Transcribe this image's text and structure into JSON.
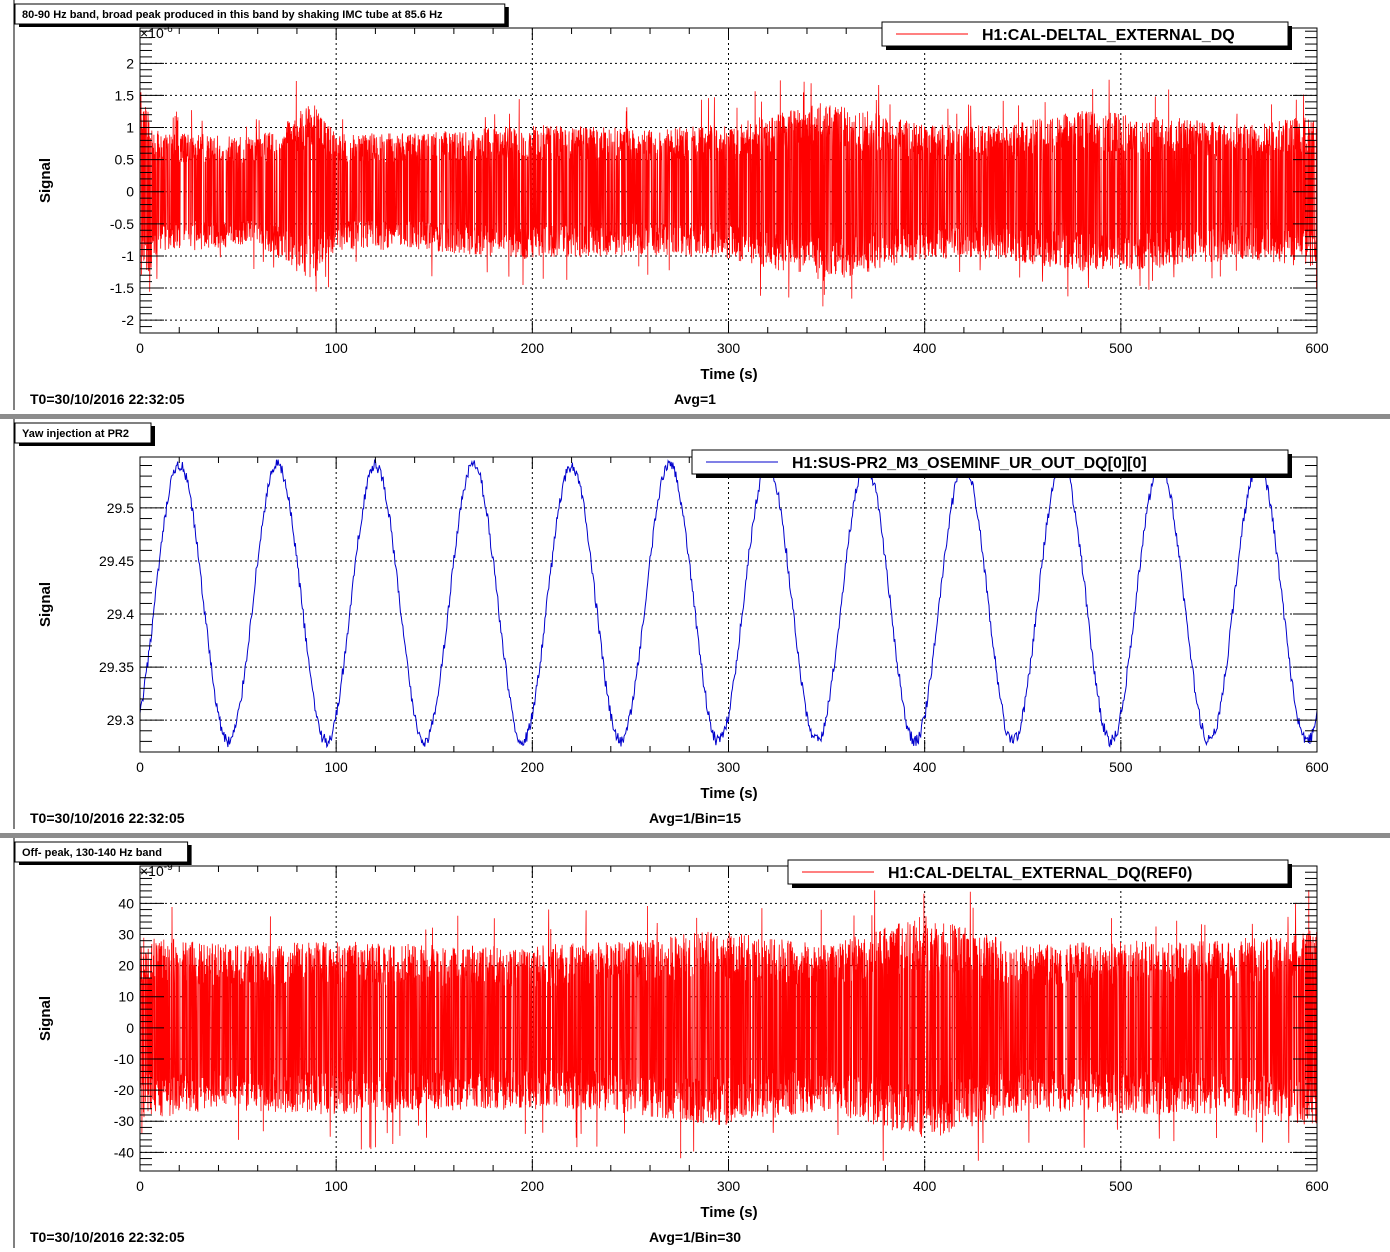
{
  "chart_data": [
    {
      "type": "line",
      "title": "80-90 Hz band, broad peak produced in this band by shaking IMC tube at 85.6 Hz",
      "xlabel": "Time (s)",
      "ylabel": "Signal",
      "y_multiplier": "×10",
      "y_exponent": "-6",
      "xlim": [
        0,
        600
      ],
      "ylim": [
        -2.2,
        2.55
      ],
      "x_ticks": [
        0,
        100,
        200,
        300,
        400,
        500,
        600
      ],
      "y_ticks": [
        -2,
        -1.5,
        -1,
        -0.5,
        0,
        0.5,
        1,
        1.5,
        2
      ],
      "grid": true,
      "legend_position": "top-right",
      "series": [
        {
          "name": "H1:CAL-DELTAL_EXTERNAL_DQ",
          "color": "#ff0000",
          "style": "dense-noise",
          "x_range": [
            0,
            600
          ],
          "envelope_max": [
            [
              0,
              2.3
            ],
            [
              10,
              1.3
            ],
            [
              30,
              1.3
            ],
            [
              60,
              1.2
            ],
            [
              88,
              2.0
            ],
            [
              100,
              1.3
            ],
            [
              140,
              1.3
            ],
            [
              200,
              1.5
            ],
            [
              260,
              1.4
            ],
            [
              300,
              1.5
            ],
            [
              350,
              2.0
            ],
            [
              400,
              1.5
            ],
            [
              440,
              1.5
            ],
            [
              480,
              1.8
            ],
            [
              520,
              1.7
            ],
            [
              560,
              1.5
            ],
            [
              600,
              1.7
            ]
          ]
        }
      ],
      "footer_left": "T0=30/10/2016 22:32:05",
      "footer_center": "Avg=1"
    },
    {
      "type": "line",
      "title": "Yaw injection at PR2",
      "xlabel": "Time (s)",
      "ylabel": "Signal",
      "xlim": [
        0,
        600
      ],
      "ylim": [
        29.27,
        29.548
      ],
      "x_ticks": [
        0,
        100,
        200,
        300,
        400,
        500,
        600
      ],
      "y_ticks": [
        29.3,
        29.35,
        29.4,
        29.45,
        29.5
      ],
      "grid": true,
      "legend_position": "top-right",
      "series": [
        {
          "name": "H1:SUS-PR2_M3_OSEMINF_UR_OUT_DQ[0][0]",
          "color": "#0000cc",
          "style": "sinusoid",
          "period_s": 50,
          "center": 29.41,
          "amplitude": 0.13,
          "first_peak_s": 20,
          "points": [
            [
              0,
              29.3
            ],
            [
              20,
              29.54
            ],
            [
              45,
              29.28
            ],
            [
              70,
              29.54
            ],
            [
              95,
              29.28
            ],
            [
              120,
              29.54
            ],
            [
              145,
              29.28
            ],
            [
              170,
              29.54
            ],
            [
              195,
              29.28
            ],
            [
              220,
              29.54
            ],
            [
              245,
              29.28
            ],
            [
              270,
              29.54
            ],
            [
              295,
              29.28
            ],
            [
              320,
              29.54
            ],
            [
              345,
              29.28
            ],
            [
              370,
              29.54
            ],
            [
              395,
              29.28
            ],
            [
              420,
              29.54
            ],
            [
              445,
              29.28
            ],
            [
              470,
              29.54
            ],
            [
              495,
              29.28
            ],
            [
              520,
              29.54
            ],
            [
              545,
              29.28
            ],
            [
              570,
              29.54
            ],
            [
              595,
              29.28
            ],
            [
              600,
              29.3
            ]
          ]
        }
      ],
      "footer_left": "T0=30/10/2016 22:32:05",
      "footer_center": "Avg=1/Bin=15"
    },
    {
      "type": "line",
      "title": "Off- peak, 130-140 Hz band",
      "xlabel": "Time (s)",
      "ylabel": "Signal",
      "y_multiplier": "×10",
      "y_exponent": "-9",
      "xlim": [
        0,
        600
      ],
      "ylim": [
        -46,
        52
      ],
      "x_ticks": [
        0,
        100,
        200,
        300,
        400,
        500,
        600
      ],
      "y_ticks": [
        -40,
        -30,
        -20,
        -10,
        0,
        10,
        20,
        30,
        40
      ],
      "grid": true,
      "legend_position": "top-right",
      "series": [
        {
          "name": "H1:CAL-DELTAL_EXTERNAL_DQ(REF0)",
          "color": "#ff0000",
          "style": "dense-noise",
          "x_range": [
            0,
            600
          ],
          "envelope_max": [
            [
              0,
              42
            ],
            [
              50,
              38
            ],
            [
              100,
              40
            ],
            [
              150,
              38
            ],
            [
              200,
              38
            ],
            [
              250,
              40
            ],
            [
              295,
              45
            ],
            [
              350,
              38
            ],
            [
              400,
              52
            ],
            [
              450,
              38
            ],
            [
              500,
              40
            ],
            [
              550,
              40
            ],
            [
              600,
              45
            ]
          ]
        }
      ],
      "footer_left": "T0=30/10/2016 22:32:05",
      "footer_center": "Avg=1/Bin=30"
    }
  ]
}
